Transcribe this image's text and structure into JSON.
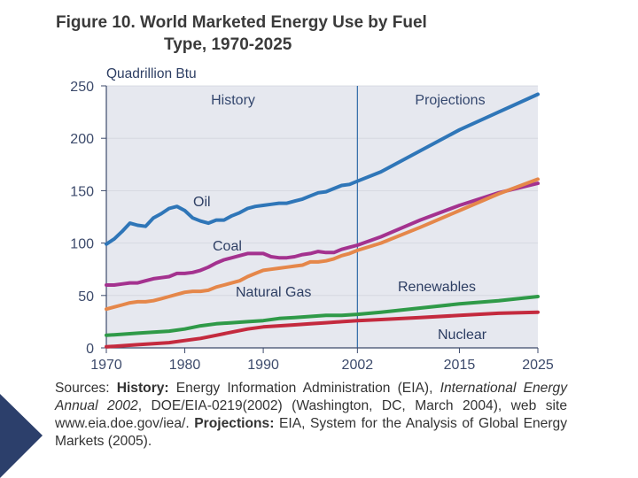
{
  "figure": {
    "title_line1": "Figure 10.  World Marketed Energy Use by Fuel",
    "title_line2": "Type, 1970-2025"
  },
  "chart_data": {
    "type": "line",
    "title": "World Marketed Energy Use by Fuel Type, 1970-2025",
    "ylabel": "Quadrillion Btu",
    "xlabel": "",
    "xlim": [
      1970,
      2025
    ],
    "ylim": [
      0,
      250
    ],
    "x_ticks": [
      "1970",
      "1980",
      "1990",
      "2002",
      "2015",
      "2025"
    ],
    "y_ticks": [
      "250",
      "200",
      "150",
      "100",
      "50",
      "0"
    ],
    "divider_year": 2002,
    "region_labels": [
      "History",
      "Projections"
    ],
    "series": [
      {
        "name": "Oil",
        "color": "#2f76b8",
        "x": [
          1970,
          1971,
          1972,
          1973,
          1974,
          1975,
          1976,
          1977,
          1978,
          1979,
          1980,
          1981,
          1982,
          1983,
          1984,
          1985,
          1986,
          1987,
          1988,
          1989,
          1990,
          1991,
          1992,
          1993,
          1994,
          1995,
          1996,
          1997,
          1998,
          1999,
          2000,
          2001,
          2002,
          2005,
          2010,
          2015,
          2020,
          2025
        ],
        "values": [
          99,
          104,
          111,
          119,
          117,
          116,
          124,
          128,
          133,
          135,
          131,
          124,
          121,
          119,
          122,
          122,
          126,
          129,
          133,
          135,
          136,
          137,
          138,
          138,
          140,
          142,
          145,
          148,
          149,
          152,
          155,
          156,
          159,
          168,
          188,
          208,
          225,
          242
        ]
      },
      {
        "name": "Coal",
        "color": "#a4328f",
        "x": [
          1970,
          1971,
          1972,
          1973,
          1974,
          1975,
          1976,
          1977,
          1978,
          1979,
          1980,
          1981,
          1982,
          1983,
          1984,
          1985,
          1986,
          1987,
          1988,
          1989,
          1990,
          1991,
          1992,
          1993,
          1994,
          1995,
          1996,
          1997,
          1998,
          1999,
          2000,
          2001,
          2002,
          2005,
          2010,
          2015,
          2020,
          2025
        ],
        "values": [
          60,
          60,
          61,
          62,
          62,
          64,
          66,
          67,
          68,
          71,
          71,
          72,
          74,
          77,
          81,
          84,
          86,
          88,
          90,
          90,
          90,
          87,
          86,
          86,
          87,
          89,
          90,
          92,
          91,
          91,
          94,
          96,
          98,
          106,
          122,
          136,
          148,
          157
        ]
      },
      {
        "name": "Natural Gas",
        "color": "#e5874a",
        "x": [
          1970,
          1971,
          1972,
          1973,
          1974,
          1975,
          1976,
          1977,
          1978,
          1979,
          1980,
          1981,
          1982,
          1983,
          1984,
          1985,
          1986,
          1987,
          1988,
          1989,
          1990,
          1991,
          1992,
          1993,
          1994,
          1995,
          1996,
          1997,
          1998,
          1999,
          2000,
          2001,
          2002,
          2005,
          2010,
          2015,
          2020,
          2025
        ],
        "values": [
          37,
          39,
          41,
          43,
          44,
          44,
          45,
          47,
          49,
          51,
          53,
          54,
          54,
          55,
          58,
          60,
          62,
          64,
          68,
          71,
          74,
          75,
          76,
          77,
          78,
          79,
          82,
          82,
          83,
          85,
          88,
          90,
          93,
          100,
          115,
          131,
          147,
          161
        ]
      },
      {
        "name": "Renewables",
        "color": "#2f9a48",
        "x": [
          1970,
          1972,
          1974,
          1976,
          1978,
          1980,
          1982,
          1984,
          1986,
          1988,
          1990,
          1992,
          1994,
          1996,
          1998,
          2000,
          2002,
          2005,
          2010,
          2015,
          2020,
          2025
        ],
        "values": [
          12,
          13,
          14,
          15,
          16,
          18,
          21,
          23,
          24,
          25,
          26,
          28,
          29,
          30,
          31,
          31,
          32,
          34,
          38,
          42,
          45,
          49
        ]
      },
      {
        "name": "Nuclear",
        "color": "#c42a3e",
        "x": [
          1970,
          1972,
          1974,
          1976,
          1978,
          1980,
          1982,
          1984,
          1986,
          1988,
          1990,
          1992,
          1994,
          1996,
          1998,
          2000,
          2002,
          2005,
          2010,
          2015,
          2020,
          2025
        ],
        "values": [
          1,
          2,
          3,
          4,
          5,
          7,
          9,
          12,
          15,
          18,
          20,
          21,
          22,
          23,
          24,
          25,
          26,
          27,
          29,
          31,
          33,
          34
        ]
      }
    ]
  },
  "sources": {
    "lead": "Sources: ",
    "history_label": "History:",
    "history_text": " Energy Information Administration (EIA), ",
    "publication": "International Energy Annual 2002",
    "history_detail": ", DOE/EIA-0219(2002) (Washington, DC, March 2004), web site www.eia.doe.gov/iea/. ",
    "projections_label": "Projections:",
    "projections_text": " EIA, System for the Analysis of Global Energy Markets (2005)."
  },
  "decor": {
    "arrow_color": "#2c3f6b"
  }
}
